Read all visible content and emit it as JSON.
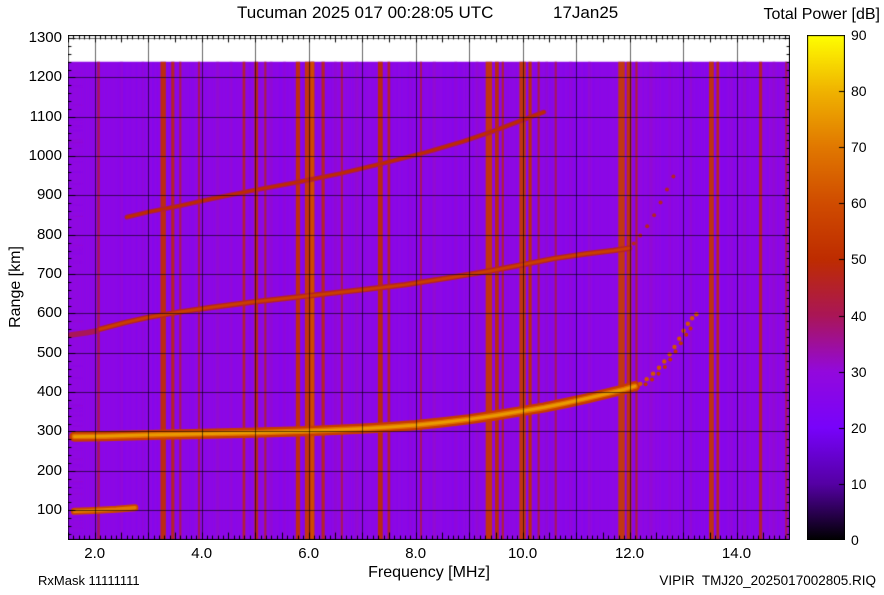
{
  "footer": {
    "rx_mask": "RxMask 11111111",
    "file_id": "VIPIR  TMJ20_2025017002805.RIQ"
  },
  "chart_data": {
    "type": "heatmap",
    "title": "Tucuman 2025 017 00:28:05 UTC",
    "date_label": "17Jan25",
    "axes": {
      "x": {
        "label": "Frequency [MHz]",
        "min": 1.5,
        "max": 15.0,
        "grid_step": 1.0,
        "minor_tick_step": 0.1,
        "ticks": [
          2.0,
          4.0,
          6.0,
          8.0,
          10.0,
          12.0,
          14.0
        ],
        "tick_labels": [
          "2.0",
          "4.0",
          "6.0",
          "8.0",
          "10.0",
          "12.0",
          "14.0"
        ]
      },
      "y": {
        "label": "Range [km]",
        "min": 24,
        "max": 1308,
        "grid_step": 100,
        "minor_tick_step": 20,
        "ticks": [
          100,
          200,
          300,
          400,
          500,
          600,
          700,
          800,
          900,
          1000,
          1100,
          1200,
          1300
        ],
        "tick_labels": [
          "100",
          "200",
          "300",
          "400",
          "500",
          "600",
          "700",
          "800",
          "900",
          "1000",
          "1100",
          "1200",
          "1300"
        ]
      }
    },
    "colorbar": {
      "label": "Total Power [dB]",
      "min": 0,
      "max": 90,
      "ticks": [
        0,
        10,
        20,
        30,
        40,
        50,
        60,
        70,
        80,
        90
      ],
      "stops": [
        {
          "value": 0,
          "color": "#000000"
        },
        {
          "value": 10,
          "color": "#5500A4"
        },
        {
          "value": 20,
          "color": "#7803FB"
        },
        {
          "value": 30,
          "color": "#9309DD"
        },
        {
          "value": 40,
          "color": "#AA1657"
        },
        {
          "value": 50,
          "color": "#BE2C00"
        },
        {
          "value": 60,
          "color": "#D04C00"
        },
        {
          "value": 70,
          "color": "#E17800"
        },
        {
          "value": 80,
          "color": "#F0B300"
        },
        {
          "value": 90,
          "color": "#FFFF00"
        }
      ]
    },
    "background_db": 27,
    "noise_amp_db": 1.5,
    "data_top_km": 1240,
    "edge_noise_fmax": 1.78,
    "rfi_stripes": [
      {
        "f": 2.07,
        "w": 0.05,
        "db": 40
      },
      {
        "f": 3.28,
        "w": 0.1,
        "db": 51
      },
      {
        "f": 3.46,
        "w": 0.06,
        "db": 47
      },
      {
        "f": 3.6,
        "w": 0.04,
        "db": 42
      },
      {
        "f": 3.95,
        "w": 0.04,
        "db": 41
      },
      {
        "f": 4.79,
        "w": 0.05,
        "db": 45
      },
      {
        "f": 5.02,
        "w": 0.07,
        "db": 48
      },
      {
        "f": 5.19,
        "w": 0.04,
        "db": 43
      },
      {
        "f": 5.8,
        "w": 0.08,
        "db": 52
      },
      {
        "f": 6.02,
        "w": 0.18,
        "db": 54
      },
      {
        "f": 6.07,
        "w": 0.06,
        "db": 60
      },
      {
        "f": 6.27,
        "w": 0.06,
        "db": 47
      },
      {
        "f": 6.62,
        "w": 0.04,
        "db": 41
      },
      {
        "f": 7.34,
        "w": 0.09,
        "db": 50
      },
      {
        "f": 7.5,
        "w": 0.05,
        "db": 46
      },
      {
        "f": 8.1,
        "w": 0.04,
        "db": 40
      },
      {
        "f": 9.37,
        "w": 0.12,
        "db": 54
      },
      {
        "f": 9.52,
        "w": 0.07,
        "db": 50
      },
      {
        "f": 9.63,
        "w": 0.04,
        "db": 45
      },
      {
        "f": 10.0,
        "w": 0.12,
        "db": 54
      },
      {
        "f": 10.14,
        "w": 0.06,
        "db": 51
      },
      {
        "f": 10.3,
        "w": 0.04,
        "db": 43
      },
      {
        "f": 10.62,
        "w": 0.04,
        "db": 40
      },
      {
        "f": 11.85,
        "w": 0.12,
        "db": 55
      },
      {
        "f": 11.99,
        "w": 0.09,
        "db": 53
      },
      {
        "f": 12.13,
        "w": 0.04,
        "db": 45
      },
      {
        "f": 13.53,
        "w": 0.09,
        "db": 53
      },
      {
        "f": 13.65,
        "w": 0.05,
        "db": 48
      },
      {
        "f": 14.45,
        "w": 0.06,
        "db": 46
      },
      {
        "f": 14.93,
        "w": 0.04,
        "db": 41
      }
    ],
    "faint_bands": [
      {
        "f": 2.5,
        "w": 0.06,
        "db": 31
      },
      {
        "f": 2.9,
        "w": 0.05,
        "db": 31
      },
      {
        "f": 4.3,
        "w": 0.06,
        "db": 32
      },
      {
        "f": 4.55,
        "w": 0.05,
        "db": 31
      },
      {
        "f": 5.3,
        "w": 0.05,
        "db": 32
      },
      {
        "f": 5.55,
        "w": 0.05,
        "db": 31
      },
      {
        "f": 6.5,
        "w": 0.05,
        "db": 32
      },
      {
        "f": 6.9,
        "w": 0.06,
        "db": 32
      },
      {
        "f": 7.9,
        "w": 0.05,
        "db": 31
      },
      {
        "f": 8.35,
        "w": 0.06,
        "db": 32
      },
      {
        "f": 8.75,
        "w": 0.05,
        "db": 31
      },
      {
        "f": 9.15,
        "w": 0.05,
        "db": 32
      },
      {
        "f": 10.45,
        "w": 0.05,
        "db": 32
      },
      {
        "f": 10.9,
        "w": 0.06,
        "db": 31
      },
      {
        "f": 11.25,
        "w": 0.05,
        "db": 32
      },
      {
        "f": 12.4,
        "w": 0.05,
        "db": 32
      },
      {
        "f": 12.75,
        "w": 0.05,
        "db": 31
      },
      {
        "f": 13.15,
        "w": 0.05,
        "db": 32
      },
      {
        "f": 13.9,
        "w": 0.05,
        "db": 31
      },
      {
        "f": 14.15,
        "w": 0.06,
        "db": 32
      },
      {
        "f": 14.7,
        "w": 0.05,
        "db": 32
      }
    ],
    "traces": [
      {
        "name": "low-range-echo",
        "style": "line",
        "layers": [
          {
            "width_km": 18,
            "db": 58
          },
          {
            "width_km": 9,
            "db": 70
          }
        ],
        "points": [
          [
            1.62,
            97
          ],
          [
            2.0,
            99
          ],
          [
            2.4,
            102
          ],
          [
            2.75,
            106
          ]
        ]
      },
      {
        "name": "left-edge-smear",
        "style": "line",
        "layers": [
          {
            "width_km": 14,
            "db": 40
          }
        ],
        "points": [
          [
            1.55,
            545
          ],
          [
            1.85,
            551
          ],
          [
            2.05,
            556
          ]
        ]
      },
      {
        "name": "f-trace-hop3",
        "style": "line",
        "layers": [
          {
            "width_km": 12,
            "db": 43
          },
          {
            "width_km": 6,
            "db": 50
          }
        ],
        "points": [
          [
            2.6,
            845
          ],
          [
            3.0,
            858
          ],
          [
            3.6,
            874
          ],
          [
            4.2,
            892
          ],
          [
            5.0,
            914
          ],
          [
            5.8,
            934
          ],
          [
            6.6,
            956
          ],
          [
            7.4,
            982
          ],
          [
            8.2,
            1010
          ],
          [
            8.9,
            1038
          ],
          [
            9.5,
            1066
          ],
          [
            10.0,
            1092
          ],
          [
            10.4,
            1112
          ]
        ]
      },
      {
        "name": "f-trace-hop2",
        "style": "line",
        "layers": [
          {
            "width_km": 14,
            "db": 46
          },
          {
            "width_km": 7,
            "db": 56
          }
        ],
        "points": [
          [
            2.1,
            560
          ],
          [
            2.6,
            578
          ],
          [
            3.0,
            590
          ],
          [
            3.6,
            604
          ],
          [
            4.2,
            616
          ],
          [
            5.0,
            630
          ],
          [
            6.0,
            645
          ],
          [
            7.0,
            660
          ],
          [
            7.8,
            673
          ],
          [
            8.6,
            690
          ],
          [
            9.3,
            706
          ],
          [
            10.0,
            724
          ],
          [
            10.6,
            740
          ],
          [
            11.2,
            752
          ],
          [
            11.7,
            760
          ],
          [
            12.0,
            766
          ]
        ]
      },
      {
        "name": "f-trace-hop2-asymptote",
        "style": "dots",
        "db": 46,
        "dot_r": 2,
        "points": [
          [
            12.08,
            778
          ],
          [
            12.2,
            798
          ],
          [
            12.33,
            822
          ],
          [
            12.46,
            850
          ],
          [
            12.58,
            882
          ],
          [
            12.7,
            915
          ],
          [
            12.82,
            948
          ]
        ]
      },
      {
        "name": "f-trace-hop1",
        "style": "line",
        "layers": [
          {
            "width_km": 26,
            "db": 55
          },
          {
            "width_km": 14,
            "db": 68
          },
          {
            "width_km": 7,
            "db": 76
          }
        ],
        "points": [
          [
            1.62,
            287
          ],
          [
            2.2,
            288
          ],
          [
            3.0,
            291
          ],
          [
            4.0,
            294
          ],
          [
            5.0,
            297
          ],
          [
            6.0,
            301
          ],
          [
            6.5,
            304
          ],
          [
            7.0,
            307
          ],
          [
            7.5,
            311
          ],
          [
            8.0,
            316
          ],
          [
            8.5,
            323
          ],
          [
            9.0,
            331
          ],
          [
            9.5,
            341
          ],
          [
            10.0,
            352
          ],
          [
            10.4,
            361
          ],
          [
            10.8,
            372
          ],
          [
            11.2,
            384
          ],
          [
            11.6,
            397
          ],
          [
            11.9,
            407
          ],
          [
            12.1,
            415
          ]
        ]
      },
      {
        "name": "f-trace-hop1-asymptote-o",
        "style": "dots",
        "db": 62,
        "dot_r": 2.2,
        "points": [
          [
            12.2,
            421
          ],
          [
            12.32,
            433
          ],
          [
            12.44,
            447
          ],
          [
            12.55,
            462
          ],
          [
            12.65,
            478
          ],
          [
            12.75,
            496
          ],
          [
            12.84,
            515
          ],
          [
            12.93,
            536
          ],
          [
            13.01,
            556
          ],
          [
            13.09,
            574
          ],
          [
            13.17,
            588
          ],
          [
            13.25,
            598
          ]
        ]
      },
      {
        "name": "f-trace-hop1-asymptote-x",
        "style": "dots",
        "db": 52,
        "dot_r": 2,
        "points": [
          [
            12.3,
            420
          ],
          [
            12.42,
            432
          ],
          [
            12.54,
            447
          ],
          [
            12.66,
            464
          ],
          [
            12.76,
            483
          ],
          [
            12.86,
            503
          ],
          [
            12.96,
            524
          ],
          [
            13.06,
            546
          ],
          [
            13.14,
            562
          ]
        ]
      }
    ]
  }
}
